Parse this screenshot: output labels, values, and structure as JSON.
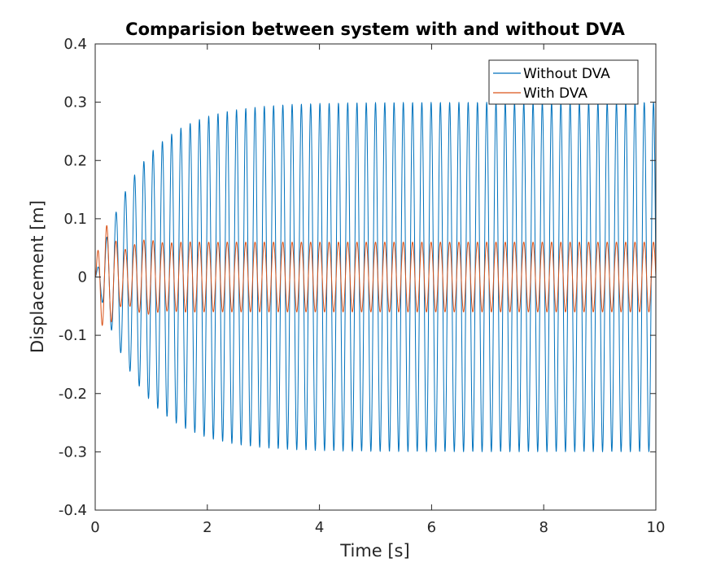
{
  "chart_data": {
    "type": "line",
    "title": "Comparision between system with and without DVA",
    "xlabel": "Time [s]",
    "ylabel": "Displacement [m]",
    "xlim": [
      0,
      10
    ],
    "ylim": [
      -0.4,
      0.4
    ],
    "xticks": [
      0,
      2,
      4,
      6,
      8,
      10
    ],
    "xtick_labels": [
      "0",
      "2",
      "4",
      "6",
      "8",
      "10"
    ],
    "yticks": [
      -0.4,
      -0.3,
      -0.2,
      -0.1,
      0,
      0.1,
      0.2,
      0.3,
      0.4
    ],
    "ytick_labels": [
      "-0.4",
      "-0.3",
      "-0.2",
      "-0.1",
      "0",
      "0.1",
      "0.2",
      "0.3",
      "0.4"
    ],
    "grid": false,
    "legend_position": "top-right",
    "series": [
      {
        "name": "Without DVA",
        "color": "#0072BD",
        "model": "steady-state amplitude 0.30 m approached from 0 (time constant ~0.8 s), oscillation frequency ~6.05 Hz",
        "amplitude": 0.3,
        "frequency_hz": 6.05,
        "time_constant_s": 0.8,
        "peaks": [
          {
            "x": 0.3,
            "y": 0.1
          },
          {
            "x": 0.47,
            "y": 0.14
          },
          {
            "x": 0.63,
            "y": 0.18
          },
          {
            "x": 0.8,
            "y": 0.2
          },
          {
            "x": 0.96,
            "y": 0.21
          },
          {
            "x": 1.13,
            "y": 0.23
          },
          {
            "x": 1.3,
            "y": 0.25
          },
          {
            "x": 1.63,
            "y": 0.27
          },
          {
            "x": 2.0,
            "y": 0.29
          },
          {
            "x": 3.0,
            "y": 0.3
          },
          {
            "x": 4.0,
            "y": 0.31
          },
          {
            "x": 5.0,
            "y": 0.31
          },
          {
            "x": 6.0,
            "y": 0.31
          },
          {
            "x": 8.0,
            "y": 0.3
          },
          {
            "x": 9.9,
            "y": 0.3
          }
        ],
        "troughs": [
          {
            "x": 0.38,
            "y": -0.12
          },
          {
            "x": 0.55,
            "y": -0.15
          },
          {
            "x": 0.8,
            "y": -0.2
          },
          {
            "x": 1.21,
            "y": -0.24
          },
          {
            "x": 1.71,
            "y": -0.27
          },
          {
            "x": 2.0,
            "y": -0.29
          },
          {
            "x": 3.0,
            "y": -0.3
          },
          {
            "x": 4.5,
            "y": -0.31
          },
          {
            "x": 6.0,
            "y": -0.31
          },
          {
            "x": 8.0,
            "y": -0.3
          },
          {
            "x": 10.0,
            "y": -0.31
          }
        ]
      },
      {
        "name": "With DVA",
        "color": "#D95319",
        "model": "transient beat with peak ~0.10 m near 0.5 s decaying to steady-state amplitude ~0.06 m, oscillation frequency ~6.05 Hz",
        "amplitude": 0.06,
        "frequency_hz": 6.05,
        "peaks": [
          {
            "x": 0.1,
            "y": 0.035
          },
          {
            "x": 0.33,
            "y": 0.09
          },
          {
            "x": 0.5,
            "y": 0.1
          },
          {
            "x": 0.66,
            "y": 0.08
          },
          {
            "x": 1.0,
            "y": 0.06
          },
          {
            "x": 2.0,
            "y": 0.06
          },
          {
            "x": 5.0,
            "y": 0.065
          },
          {
            "x": 9.9,
            "y": 0.065
          }
        ],
        "troughs": [
          {
            "x": 0.2,
            "y": -0.06
          },
          {
            "x": 0.4,
            "y": -0.09
          },
          {
            "x": 0.58,
            "y": -0.08
          },
          {
            "x": 1.0,
            "y": -0.06
          },
          {
            "x": 5.0,
            "y": -0.06
          },
          {
            "x": 10.0,
            "y": -0.06
          }
        ]
      }
    ]
  }
}
